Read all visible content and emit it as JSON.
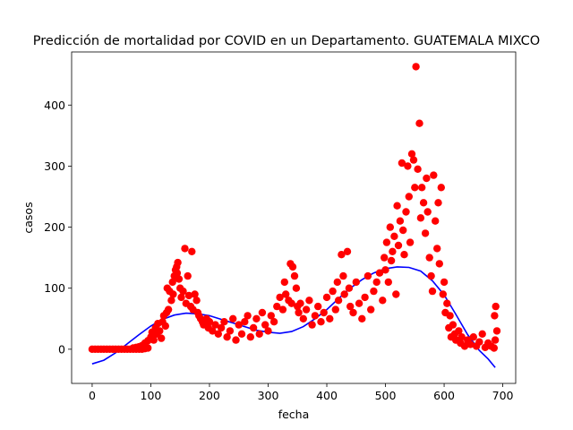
{
  "chart_data": {
    "type": "scatter",
    "title": "Predicción de mortalidad por COVID en un Departamento. GUATEMALA MIXCO",
    "xlabel": "fecha",
    "ylabel": "casos",
    "xlim": [
      -35,
      722
    ],
    "ylim": [
      -56,
      487
    ],
    "x_ticks": [
      0,
      100,
      200,
      300,
      400,
      500,
      600,
      700
    ],
    "y_ticks": [
      0,
      100,
      200,
      300,
      400
    ],
    "grid": false,
    "legend": "none",
    "colors": {
      "scatter": "#ff0000",
      "fit": "#0000ff"
    },
    "series": [
      {
        "kind": "scatter",
        "points": [
          [
            0,
            0
          ],
          [
            5,
            0
          ],
          [
            10,
            0
          ],
          [
            15,
            0
          ],
          [
            20,
            0
          ],
          [
            25,
            0
          ],
          [
            30,
            0
          ],
          [
            35,
            0
          ],
          [
            40,
            0
          ],
          [
            45,
            0
          ],
          [
            50,
            0
          ],
          [
            55,
            0
          ],
          [
            60,
            0
          ],
          [
            65,
            0
          ],
          [
            70,
            0
          ],
          [
            75,
            0
          ],
          [
            80,
            0
          ],
          [
            85,
            0
          ],
          [
            90,
            1
          ],
          [
            95,
            2
          ],
          [
            70,
            2
          ],
          [
            75,
            3
          ],
          [
            80,
            4
          ],
          [
            85,
            6
          ],
          [
            90,
            10
          ],
          [
            95,
            14
          ],
          [
            100,
            20
          ],
          [
            102,
            28
          ],
          [
            105,
            15
          ],
          [
            108,
            35
          ],
          [
            110,
            25
          ],
          [
            112,
            42
          ],
          [
            115,
            30
          ],
          [
            118,
            18
          ],
          [
            120,
            45
          ],
          [
            122,
            55
          ],
          [
            125,
            38
          ],
          [
            127,
            60
          ],
          [
            128,
            100
          ],
          [
            130,
            65
          ],
          [
            132,
            95
          ],
          [
            135,
            80
          ],
          [
            137,
            110
          ],
          [
            138,
            90
          ],
          [
            140,
            120
          ],
          [
            142,
            130
          ],
          [
            144,
            135
          ],
          [
            145,
            125
          ],
          [
            146,
            142
          ],
          [
            148,
            115
          ],
          [
            150,
            100
          ],
          [
            152,
            85
          ],
          [
            155,
            95
          ],
          [
            158,
            165
          ],
          [
            160,
            75
          ],
          [
            163,
            120
          ],
          [
            165,
            88
          ],
          [
            168,
            70
          ],
          [
            170,
            160
          ],
          [
            172,
            65
          ],
          [
            175,
            90
          ],
          [
            178,
            80
          ],
          [
            180,
            60
          ],
          [
            182,
            55
          ],
          [
            185,
            50
          ],
          [
            188,
            45
          ],
          [
            190,
            40
          ],
          [
            195,
            50
          ],
          [
            198,
            35
          ],
          [
            200,
            45
          ],
          [
            205,
            30
          ],
          [
            210,
            40
          ],
          [
            215,
            25
          ],
          [
            220,
            35
          ],
          [
            225,
            45
          ],
          [
            230,
            20
          ],
          [
            235,
            30
          ],
          [
            240,
            50
          ],
          [
            245,
            15
          ],
          [
            250,
            40
          ],
          [
            255,
            25
          ],
          [
            260,
            45
          ],
          [
            265,
            55
          ],
          [
            270,
            20
          ],
          [
            275,
            35
          ],
          [
            280,
            50
          ],
          [
            285,
            25
          ],
          [
            290,
            60
          ],
          [
            295,
            40
          ],
          [
            300,
            30
          ],
          [
            305,
            55
          ],
          [
            310,
            45
          ],
          [
            315,
            70
          ],
          [
            320,
            85
          ],
          [
            325,
            65
          ],
          [
            328,
            110
          ],
          [
            330,
            90
          ],
          [
            335,
            80
          ],
          [
            338,
            140
          ],
          [
            340,
            75
          ],
          [
            342,
            135
          ],
          [
            345,
            120
          ],
          [
            348,
            100
          ],
          [
            350,
            70
          ],
          [
            352,
            60
          ],
          [
            355,
            75
          ],
          [
            360,
            50
          ],
          [
            365,
            65
          ],
          [
            370,
            80
          ],
          [
            375,
            40
          ],
          [
            380,
            55
          ],
          [
            385,
            70
          ],
          [
            390,
            45
          ],
          [
            395,
            60
          ],
          [
            400,
            85
          ],
          [
            405,
            50
          ],
          [
            410,
            95
          ],
          [
            415,
            65
          ],
          [
            418,
            110
          ],
          [
            420,
            80
          ],
          [
            425,
            155
          ],
          [
            428,
            120
          ],
          [
            430,
            90
          ],
          [
            435,
            160
          ],
          [
            438,
            100
          ],
          [
            440,
            70
          ],
          [
            445,
            60
          ],
          [
            450,
            110
          ],
          [
            455,
            75
          ],
          [
            460,
            50
          ],
          [
            465,
            85
          ],
          [
            470,
            120
          ],
          [
            475,
            65
          ],
          [
            480,
            95
          ],
          [
            485,
            110
          ],
          [
            490,
            125
          ],
          [
            495,
            80
          ],
          [
            498,
            150
          ],
          [
            500,
            130
          ],
          [
            502,
            175
          ],
          [
            505,
            110
          ],
          [
            508,
            200
          ],
          [
            510,
            145
          ],
          [
            512,
            160
          ],
          [
            515,
            185
          ],
          [
            518,
            90
          ],
          [
            520,
            235
          ],
          [
            522,
            170
          ],
          [
            525,
            210
          ],
          [
            528,
            305
          ],
          [
            530,
            195
          ],
          [
            532,
            155
          ],
          [
            535,
            225
          ],
          [
            538,
            300
          ],
          [
            540,
            250
          ],
          [
            542,
            175
          ],
          [
            545,
            320
          ],
          [
            548,
            310
          ],
          [
            550,
            265
          ],
          [
            552,
            463
          ],
          [
            555,
            295
          ],
          [
            558,
            370
          ],
          [
            560,
            215
          ],
          [
            562,
            265
          ],
          [
            565,
            240
          ],
          [
            568,
            190
          ],
          [
            570,
            280
          ],
          [
            572,
            225
          ],
          [
            575,
            150
          ],
          [
            578,
            120
          ],
          [
            580,
            95
          ],
          [
            582,
            285
          ],
          [
            585,
            210
          ],
          [
            588,
            165
          ],
          [
            590,
            240
          ],
          [
            592,
            140
          ],
          [
            595,
            265
          ],
          [
            598,
            90
          ],
          [
            600,
            110
          ],
          [
            602,
            60
          ],
          [
            605,
            75
          ],
          [
            608,
            35
          ],
          [
            610,
            55
          ],
          [
            612,
            20
          ],
          [
            615,
            40
          ],
          [
            618,
            25
          ],
          [
            620,
            15
          ],
          [
            625,
            30
          ],
          [
            628,
            10
          ],
          [
            630,
            20
          ],
          [
            635,
            5
          ],
          [
            640,
            15
          ],
          [
            645,
            8
          ],
          [
            650,
            20
          ],
          [
            655,
            5
          ],
          [
            660,
            12
          ],
          [
            665,
            25
          ],
          [
            670,
            3
          ],
          [
            675,
            10
          ],
          [
            680,
            5
          ],
          [
            685,
            2
          ],
          [
            688,
            70
          ],
          [
            686,
            55
          ],
          [
            690,
            30
          ],
          [
            687,
            15
          ]
        ]
      },
      {
        "kind": "line",
        "points": [
          [
            0,
            -24
          ],
          [
            20,
            -18
          ],
          [
            40,
            -6
          ],
          [
            60,
            9
          ],
          [
            80,
            24
          ],
          [
            100,
            38
          ],
          [
            120,
            49
          ],
          [
            140,
            56
          ],
          [
            160,
            59
          ],
          [
            180,
            58
          ],
          [
            200,
            55
          ],
          [
            220,
            49
          ],
          [
            240,
            43
          ],
          [
            260,
            37
          ],
          [
            280,
            31
          ],
          [
            300,
            28
          ],
          [
            320,
            26
          ],
          [
            340,
            29
          ],
          [
            360,
            37
          ],
          [
            380,
            50
          ],
          [
            400,
            65
          ],
          [
            420,
            83
          ],
          [
            440,
            100
          ],
          [
            460,
            114
          ],
          [
            480,
            125
          ],
          [
            500,
            132
          ],
          [
            520,
            135
          ],
          [
            540,
            134
          ],
          [
            560,
            128
          ],
          [
            580,
            112
          ],
          [
            600,
            89
          ],
          [
            620,
            57
          ],
          [
            640,
            24
          ],
          [
            660,
            -2
          ],
          [
            675,
            -16
          ],
          [
            687,
            -30
          ]
        ]
      }
    ]
  }
}
